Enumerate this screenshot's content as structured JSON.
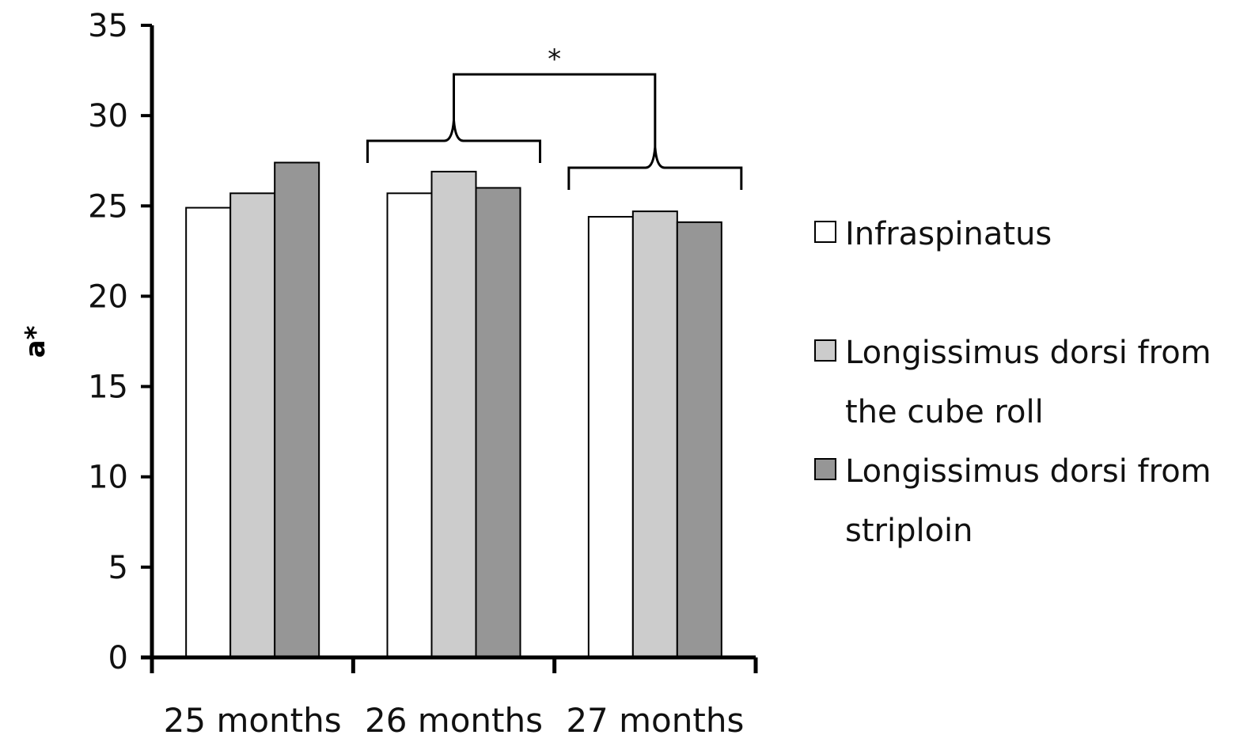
{
  "chart_data": {
    "type": "bar",
    "ylabel": "a*",
    "xlabel": "",
    "ylim": [
      0,
      35
    ],
    "yticks": [
      0,
      5,
      10,
      15,
      20,
      25,
      30,
      35
    ],
    "categories": [
      "25 months",
      "26 months",
      "27 months"
    ],
    "series": [
      {
        "name": "Infraspinatus",
        "values": [
          24.9,
          25.7,
          24.4
        ],
        "color": "#ffffff"
      },
      {
        "name": "Longissimus dorsi from the cube roll",
        "values": [
          25.7,
          26.9,
          24.7
        ],
        "color": "#cccccc"
      },
      {
        "name": "Longissimus dorsi from striploin",
        "values": [
          27.4,
          26.0,
          24.1
        ],
        "color": "#969696"
      }
    ],
    "legend_position": "right",
    "legend_lines": [
      [
        "Infraspinatus"
      ],
      [
        "Longissimus dorsi from",
        "the cube roll"
      ],
      [
        "Longissimus dorsi from",
        "striploin"
      ]
    ],
    "annotations": [
      {
        "type": "significance",
        "text": "*",
        "between": [
          "26 months",
          "27 months"
        ]
      }
    ],
    "grid": false
  }
}
